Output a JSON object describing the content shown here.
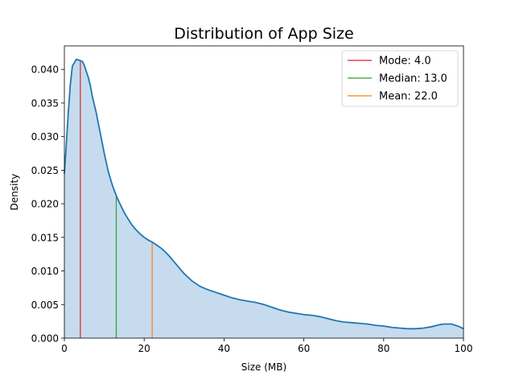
{
  "chart_data": {
    "type": "area",
    "title": "Distribution of App Size",
    "xlabel": "Size (MB)",
    "ylabel": "Density",
    "xlim": [
      0,
      100
    ],
    "ylim": [
      0,
      0.0435
    ],
    "grid": false,
    "legend_position": "top-right",
    "x_ticks": [
      0,
      20,
      40,
      60,
      80,
      100
    ],
    "x_tick_labels": [
      "0",
      "20",
      "40",
      "60",
      "80",
      "100"
    ],
    "y_ticks": [
      0.0,
      0.005,
      0.01,
      0.015,
      0.02,
      0.025,
      0.03,
      0.035,
      0.04
    ],
    "y_tick_labels": [
      "0.000",
      "0.005",
      "0.010",
      "0.015",
      "0.020",
      "0.025",
      "0.030",
      "0.035",
      "0.040"
    ],
    "series": [
      {
        "color": "#1f77b4",
        "fill_color": "#c6dbed",
        "x": [
          0,
          0.5,
          1,
          1.5,
          2,
          2.5,
          3,
          3.5,
          4,
          4.5,
          5,
          5.5,
          6,
          6.5,
          7,
          8,
          9,
          10,
          11,
          12,
          13,
          14,
          15,
          16,
          17,
          18,
          19,
          20,
          21,
          22,
          23,
          24,
          25,
          26,
          27,
          28,
          30,
          32,
          34,
          36,
          38,
          40,
          42,
          44,
          46,
          48,
          50,
          52,
          54,
          56,
          58,
          60,
          62,
          64,
          66,
          68,
          70,
          72,
          74,
          76,
          78,
          80,
          82,
          84,
          86,
          88,
          90,
          92,
          94,
          95,
          96,
          97,
          98,
          99,
          100
        ],
        "y": [
          0.0245,
          0.029,
          0.0338,
          0.0378,
          0.0405,
          0.041,
          0.0415,
          0.0414,
          0.0413,
          0.0412,
          0.0406,
          0.0397,
          0.0388,
          0.0376,
          0.036,
          0.0335,
          0.0305,
          0.0275,
          0.0248,
          0.0228,
          0.0212,
          0.0199,
          0.0187,
          0.0177,
          0.0168,
          0.0161,
          0.0155,
          0.015,
          0.0146,
          0.0143,
          0.0139,
          0.0135,
          0.013,
          0.0124,
          0.0117,
          0.011,
          0.0096,
          0.0085,
          0.0077,
          0.0072,
          0.0068,
          0.0064,
          0.006,
          0.0057,
          0.0055,
          0.0053,
          0.005,
          0.0046,
          0.0042,
          0.0039,
          0.0037,
          0.0035,
          0.0034,
          0.0032,
          0.0029,
          0.0026,
          0.0024,
          0.0023,
          0.0022,
          0.0021,
          0.0019,
          0.0018,
          0.0016,
          0.0015,
          0.0014,
          0.0014,
          0.0015,
          0.0017,
          0.002,
          0.0021,
          0.0021,
          0.0021,
          0.0019,
          0.0017,
          0.0014
        ]
      }
    ],
    "reference_lines": [
      {
        "label": "Mode: 4.0",
        "x": 4.0,
        "color": "#d62728"
      },
      {
        "label": "Median: 13.0",
        "x": 13.0,
        "color": "#2ca02c"
      },
      {
        "label": "Mean: 22.0",
        "x": 22.0,
        "color": "#ff7f0e"
      }
    ]
  }
}
